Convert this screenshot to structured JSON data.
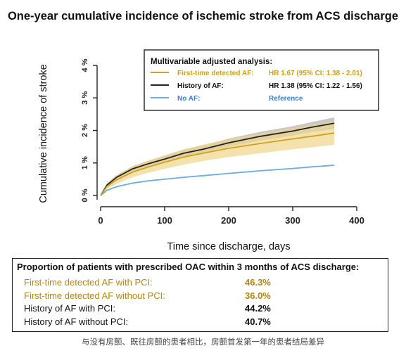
{
  "page": {
    "title": "One-year cumulative incidence of ischemic stroke from ACS discharge",
    "caption": "与没有房颤、既往房颤的患者相比，房颤首发第一年的患者结局差异"
  },
  "colors": {
    "first_time_af": "#d4a017",
    "first_time_af_band": "#f0d58c",
    "history_af": "#222222",
    "history_af_band": "#9a9a9a",
    "no_af": "#6aaee0",
    "reference_text": "#3d7fd0",
    "oac_highlight": "#b8860b"
  },
  "chart_data": {
    "type": "line",
    "title": "One-year cumulative incidence of ischemic stroke from ACS discharge",
    "xlabel": "Time since discharge, days",
    "ylabel": "Cumulative incidence of stroke",
    "xlim": [
      0,
      400
    ],
    "ylim": [
      0,
      4
    ],
    "xticks": [
      0,
      100,
      200,
      300,
      400
    ],
    "yticks": [
      0,
      1,
      2,
      3,
      4
    ],
    "ytick_labels": [
      "0 %",
      "1 %",
      "2 %",
      "3 %",
      "4 %"
    ],
    "legend": {
      "title": "Multivariable adjusted analysis:",
      "position": "top-right",
      "entries": [
        {
          "label": "First-time detected AF:",
          "stat": "HR 1.67 (95% CI: 1.38 - 2.01)",
          "color_key": "first_time_af"
        },
        {
          "label": "History of AF:",
          "stat": "HR 1.38 (95% CI: 1.22 - 1.56)",
          "color_key": "history_af"
        },
        {
          "label": "No AF:",
          "stat": "Reference",
          "color_key": "no_af"
        }
      ]
    },
    "series": [
      {
        "name": "First-time detected AF",
        "x": [
          0,
          10,
          25,
          50,
          75,
          100,
          130,
          160,
          200,
          250,
          300,
          330,
          365
        ],
        "y": [
          0,
          0.28,
          0.48,
          0.72,
          0.88,
          1.02,
          1.18,
          1.3,
          1.45,
          1.6,
          1.74,
          1.82,
          1.92
        ],
        "ci_lower": [
          0,
          0.2,
          0.36,
          0.56,
          0.7,
          0.82,
          0.95,
          1.06,
          1.18,
          1.3,
          1.42,
          1.48,
          1.56
        ],
        "ci_upper": [
          0,
          0.38,
          0.62,
          0.9,
          1.08,
          1.24,
          1.42,
          1.56,
          1.73,
          1.91,
          2.07,
          2.17,
          2.28
        ]
      },
      {
        "name": "History of AF",
        "x": [
          0,
          10,
          25,
          50,
          75,
          100,
          130,
          160,
          200,
          250,
          300,
          330,
          365
        ],
        "y": [
          0,
          0.32,
          0.56,
          0.82,
          0.98,
          1.12,
          1.3,
          1.42,
          1.62,
          1.82,
          1.98,
          2.1,
          2.22
        ],
        "ci_lower": [
          0,
          0.27,
          0.49,
          0.74,
          0.89,
          1.02,
          1.19,
          1.31,
          1.5,
          1.69,
          1.84,
          1.95,
          2.05
        ],
        "ci_upper": [
          0,
          0.38,
          0.63,
          0.9,
          1.07,
          1.22,
          1.41,
          1.54,
          1.75,
          1.96,
          2.13,
          2.26,
          2.4
        ]
      },
      {
        "name": "No AF",
        "x": [
          0,
          10,
          25,
          50,
          75,
          100,
          130,
          160,
          200,
          250,
          300,
          330,
          365
        ],
        "y": [
          0,
          0.16,
          0.27,
          0.38,
          0.45,
          0.5,
          0.56,
          0.61,
          0.68,
          0.76,
          0.83,
          0.88,
          0.93
        ]
      }
    ]
  },
  "oac_table": {
    "title": "Proportion of patients with prescribed OAC within 3 months of ACS discharge:",
    "rows": [
      {
        "label": "First-time detected AF with PCI:",
        "value": "46.3%",
        "highlight": true
      },
      {
        "label": "First-time detected AF without PCI:",
        "value": "36.0%",
        "highlight": true
      },
      {
        "label": "History of AF with PCI:",
        "value": "44.2%",
        "highlight": false
      },
      {
        "label": "History of AF without PCI:",
        "value": "40.7%",
        "highlight": false
      }
    ]
  }
}
